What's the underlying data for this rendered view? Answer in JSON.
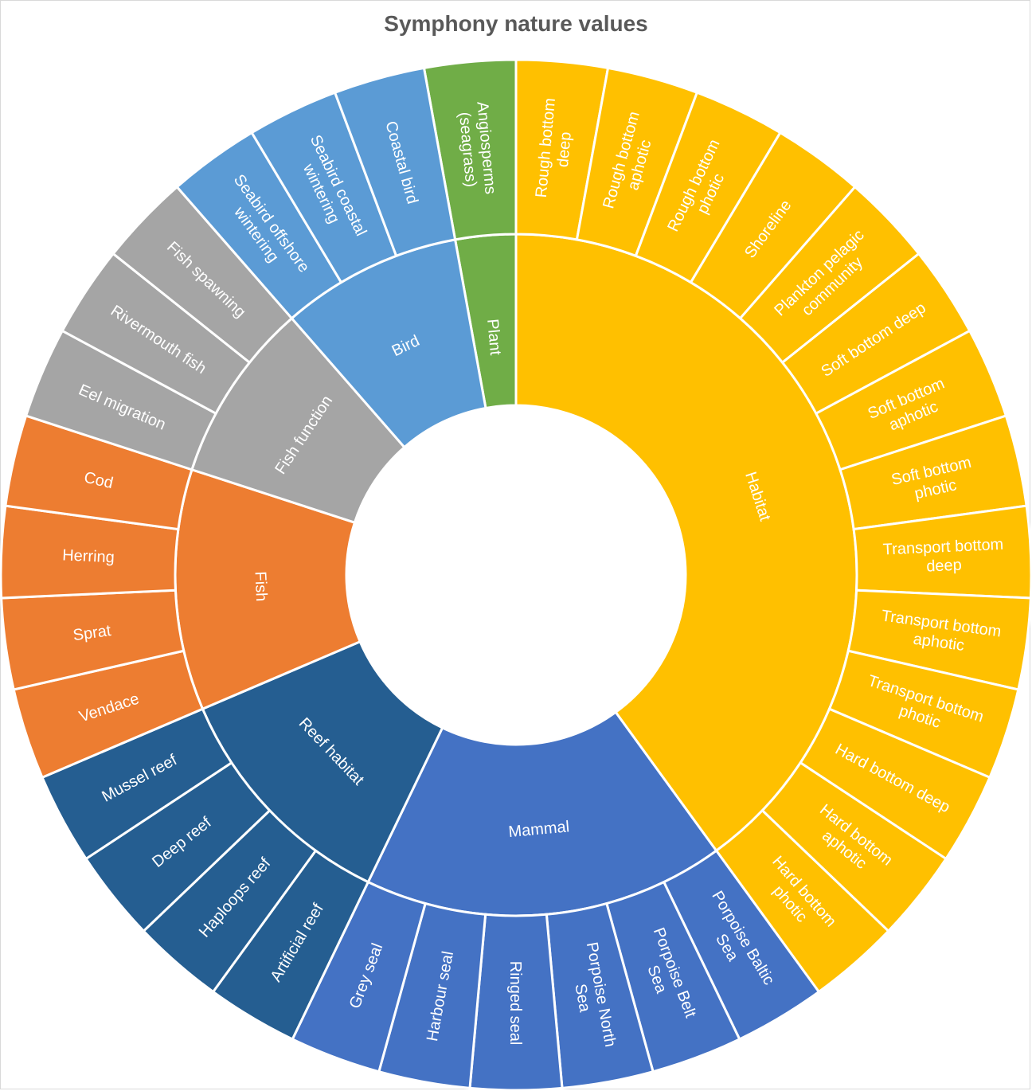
{
  "chart_data": {
    "type": "sunburst",
    "title": "Symphony nature values",
    "groups": [
      {
        "name": "Plant",
        "color": "#70AD47",
        "children": [
          "Angiosperms (seagrass)"
        ]
      },
      {
        "name": "Habitat",
        "color": "#FFC000",
        "children": [
          "Rough bottom deep",
          "Rough bottom aphotic",
          "Rough bottom photic",
          "Shoreline",
          "Plankton pelagic community",
          "Soft bottom deep",
          "Soft bottom aphotic",
          "Soft bottom photic",
          "Transport bottom deep",
          "Transport bottom aphotic",
          "Transport bottom photic",
          "Hard bottom deep",
          "Hard bottom aphotic",
          "Hard bottom photic"
        ]
      },
      {
        "name": "Mammal",
        "color": "#4472C4",
        "children": [
          "Porpoise Baltic Sea",
          "Porpoise Belt Sea",
          "Porpoise North Sea",
          "Ringed seal",
          "Harbour seal",
          "Grey seal"
        ]
      },
      {
        "name": "Reef habitat",
        "color": "#255E91",
        "children": [
          "Artificial reef",
          "Haploops reef",
          "Deep reef",
          "Mussel reef"
        ]
      },
      {
        "name": "Fish",
        "color": "#ED7D31",
        "children": [
          "Vendace",
          "Sprat",
          "Herring",
          "Cod"
        ]
      },
      {
        "name": "Fish function",
        "color": "#A5A5A5",
        "children": [
          "Eel migration",
          "Rivermouth fish",
          "Fish spawning"
        ]
      },
      {
        "name": "Bird",
        "color": "#5B9BD5",
        "children": [
          "Seabird offshore wintering",
          "Seabird coastal wintering",
          "Coastal bird"
        ]
      }
    ],
    "leaf_value": 1
  }
}
